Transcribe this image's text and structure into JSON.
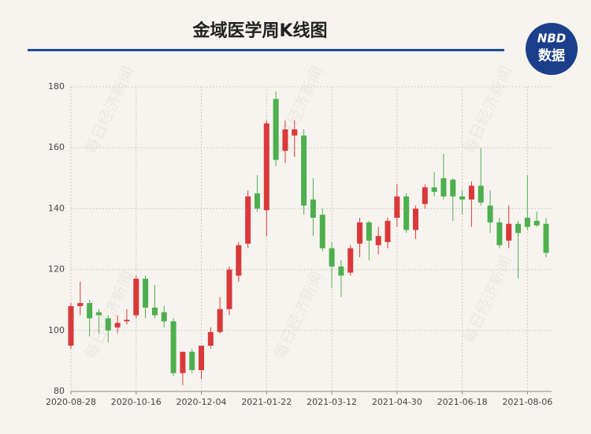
{
  "chart_data": {
    "type": "candlestick",
    "title": "金域医学周K线图",
    "logo": [
      "NBD",
      "数据"
    ],
    "watermark": "每日经济新闻",
    "categories": [
      "2020-08-28",
      null,
      null,
      null,
      null,
      null,
      null,
      "2020-10-16",
      null,
      null,
      null,
      null,
      null,
      null,
      "2020-12-04",
      null,
      null,
      null,
      null,
      null,
      null,
      "2021-01-22",
      null,
      null,
      null,
      null,
      null,
      null,
      "2021-03-12",
      null,
      null,
      null,
      null,
      null,
      null,
      "2021-04-30",
      null,
      null,
      null,
      null,
      null,
      null,
      "2021-06-18",
      null,
      null,
      null,
      null,
      null,
      null,
      "2021-08-06",
      null,
      null
    ],
    "open": [
      95,
      108,
      109,
      106,
      104,
      101,
      103,
      105,
      117,
      107.5,
      106,
      103,
      86,
      93,
      87,
      95,
      99.5,
      107,
      118,
      128.5,
      145,
      139.5,
      176,
      159,
      164,
      164,
      143,
      138,
      127,
      121,
      119,
      128.5,
      135.5,
      128,
      129,
      137,
      144,
      133,
      141.5,
      147,
      150,
      149.5,
      144,
      143,
      147.5,
      141,
      135.5,
      129.5,
      135,
      137,
      136,
      135
    ],
    "high": [
      109,
      116,
      110,
      107,
      105,
      105,
      107,
      118,
      118,
      115,
      108,
      104,
      93,
      94,
      95,
      101,
      111,
      121,
      129,
      146,
      151,
      169,
      178.5,
      169,
      169,
      166,
      150,
      140,
      129,
      123,
      128,
      137,
      136,
      134,
      137,
      148,
      145,
      141,
      148,
      152,
      158,
      150,
      146,
      149,
      160,
      146,
      137,
      141,
      136,
      151,
      139,
      137
    ],
    "low": [
      94,
      105,
      98,
      99,
      96,
      99,
      102,
      104,
      104,
      104,
      101,
      85,
      82,
      86,
      84,
      94,
      99,
      105,
      116,
      127,
      139,
      131,
      154,
      155,
      157,
      138,
      131,
      126,
      114,
      111,
      118,
      124,
      123,
      125,
      127,
      134,
      132,
      130,
      140,
      144,
      143,
      136,
      138,
      134,
      141,
      132,
      127,
      127,
      117,
      133,
      134,
      124
    ],
    "close": [
      108,
      109,
      104,
      105,
      100,
      102.5,
      103.5,
      117,
      107.5,
      105,
      103,
      86,
      93,
      87,
      95,
      99.5,
      107,
      120,
      128,
      144,
      140,
      168,
      156,
      166,
      166,
      141,
      137,
      127,
      121,
      118,
      127,
      135.5,
      129.5,
      131,
      136,
      144,
      133,
      140,
      147,
      145.5,
      144,
      144,
      143,
      147.5,
      142,
      135.5,
      128,
      135,
      132,
      134,
      134.5,
      125.5
    ],
    "up_color": "#d9393b",
    "down_color": "#4daf4e",
    "ylim": [
      80,
      180
    ],
    "yticks": [
      80,
      100,
      120,
      140,
      160,
      180
    ],
    "grid": true
  }
}
